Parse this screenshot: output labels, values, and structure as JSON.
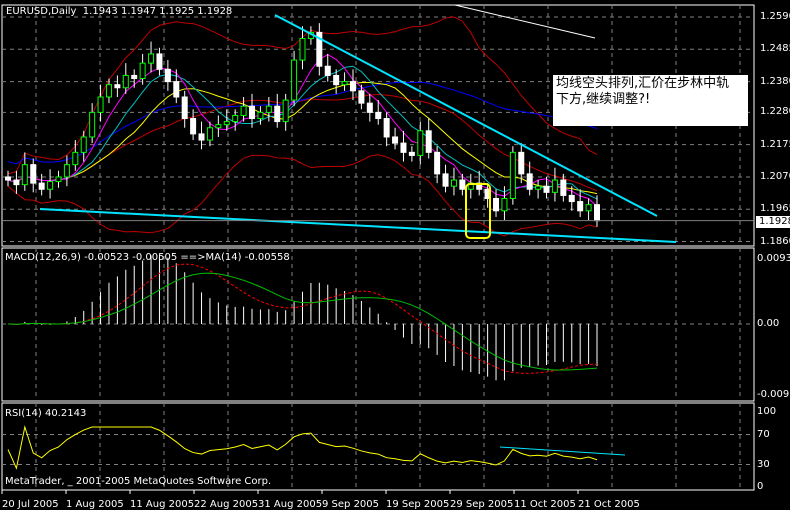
{
  "header": {
    "symbol_tf": "EURUSD,Daily",
    "ohlc": "1.1943 1.1947 1.1925 1.1928"
  },
  "annotation": {
    "line1": "均线空头排列,汇价在步林中轨",
    "line2": "下方,继续调整?!"
  },
  "price_axis": [
    "1.2590",
    "1.2485",
    "1.2380",
    "1.2280",
    "1.2175",
    "1.2070",
    "1.1965",
    "1.1860"
  ],
  "current_price": "1.1928",
  "macd": {
    "label": "MACD(12,26,9) -0.00523 -0.00505 ==>MA(14) -0.00558",
    "axis": [
      "0.00937",
      "0.00",
      "-0.00981"
    ]
  },
  "rsi": {
    "label": "RSI(14) 40.2143",
    "axis": [
      "100",
      "70",
      "30",
      "0"
    ]
  },
  "copyright": "MetaTrader, _ 2001-2005 MetaQuotes Software Corp.",
  "dates": [
    "20 Jul 2005",
    "1 Aug 2005",
    "11 Aug 2005",
    "22 Aug 2005",
    "31 Aug 2005",
    "9 Sep 2005",
    "19 Sep 2005",
    "29 Sep 2005",
    "11 Oct 2005",
    "21 Oct 2005"
  ],
  "colors": {
    "bg": "#000000",
    "up": "#ffffff",
    "down": "#ffffff",
    "trendline": "#00e5ff",
    "bollinger": "#c00000",
    "ma_fast": "#ff00ff",
    "ma_mid": "#00c0c0",
    "ma_slow": "#ffff00",
    "ma_long": "#0000ff",
    "rsi": "#ffff00",
    "macd_signal": "#ff0000",
    "macd_ma": "#00c000"
  },
  "chart_data": {
    "type": "candlestick",
    "symbol": "EURUSD",
    "timeframe": "Daily",
    "ylim": [
      1.186,
      1.259
    ],
    "closes": [
      1.206,
      1.2045,
      1.211,
      1.205,
      1.203,
      1.2055,
      1.207,
      1.211,
      1.215,
      1.22,
      1.228,
      1.233,
      1.237,
      1.236,
      1.24,
      1.239,
      1.244,
      1.247,
      1.242,
      1.238,
      1.233,
      1.226,
      1.221,
      1.219,
      1.223,
      1.224,
      1.225,
      1.227,
      1.23,
      1.226,
      1.228,
      1.23,
      1.225,
      1.232,
      1.245,
      1.252,
      1.254,
      1.243,
      1.24,
      1.237,
      1.238,
      1.235,
      1.231,
      1.228,
      1.226,
      1.22,
      1.218,
      1.215,
      1.214,
      1.222,
      1.215,
      1.208,
      1.204,
      1.206,
      1.203,
      1.205,
      1.203,
      1.2,
      1.196,
      1.2,
      1.215,
      1.208,
      1.203,
      1.204,
      1.202,
      1.206,
      1.201,
      1.199,
      1.196,
      1.198,
      1.1928
    ]
  }
}
